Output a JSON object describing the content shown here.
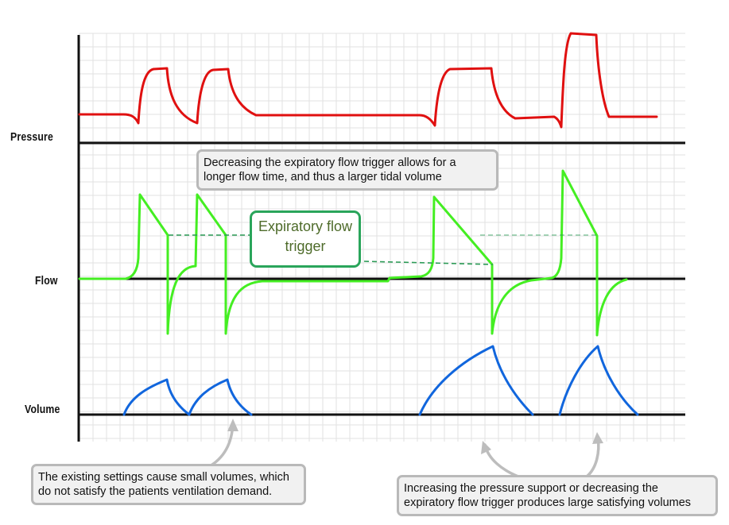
{
  "axes": {
    "pressure_label": "Pressure",
    "flow_label": "Flow",
    "volume_label": "Volume"
  },
  "callouts": {
    "top": {
      "line1": "Decreasing the expiratory flow trigger allows for a",
      "line2": "longer flow time, and thus a larger tidal volume"
    },
    "trigger": {
      "line1": "Expiratory flow",
      "line2": "trigger"
    },
    "bottom_left": {
      "line1": "The existing settings cause small volumes, which",
      "line2": "do not satisfy the patients ventilation demand."
    },
    "bottom_right": {
      "line1": "Increasing the pressure support or decreasing the",
      "line2": "expiratory flow trigger produces large satisfying volumes"
    }
  },
  "colors": {
    "pressure": "#e01010",
    "flow": "#44ee22",
    "volume": "#1166dd",
    "trigger_line": "#2a9a55",
    "grid": "#e2e2e2",
    "callout_border": "#b9b9b9",
    "arrow": "#bdbdbd"
  }
}
